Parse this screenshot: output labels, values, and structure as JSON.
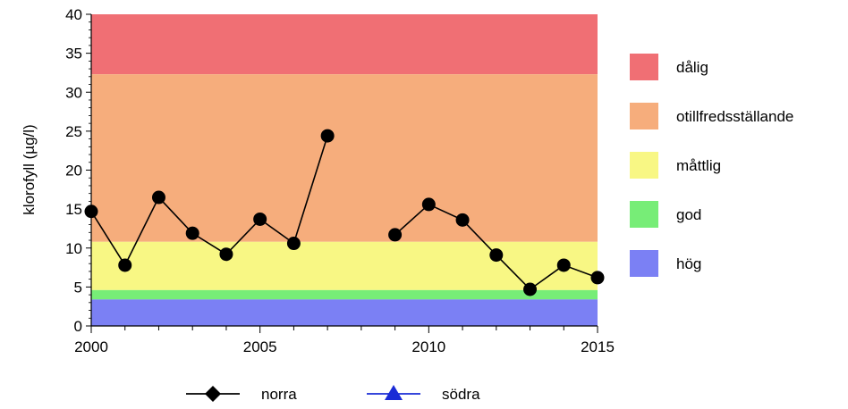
{
  "chart_data": {
    "type": "line",
    "ylabel": "klorofyll (µg/l)",
    "xlabel": "",
    "xlim": [
      2000,
      2015
    ],
    "ylim": [
      0,
      40
    ],
    "xticks": [
      "2000",
      "2005",
      "2010",
      "2015"
    ],
    "yticks": [
      "0",
      "5",
      "10",
      "15",
      "20",
      "25",
      "30",
      "35",
      "40"
    ],
    "grid": false,
    "status_classes": [
      {
        "label": "dålig",
        "from": 32.3,
        "to": 40,
        "color": "#f06f74"
      },
      {
        "label": "otillfredsställande",
        "from": 10.8,
        "to": 32.3,
        "color": "#f6ad7c"
      },
      {
        "label": "måttlig",
        "from": 4.6,
        "to": 10.8,
        "color": "#f8f784"
      },
      {
        "label": "god",
        "from": 3.4,
        "to": 4.6,
        "color": "#77ed77"
      },
      {
        "label": "hög",
        "from": 0,
        "to": 3.4,
        "color": "#7b80f4"
      }
    ],
    "series": [
      {
        "name": "norra",
        "marker": "diamond",
        "color": "#000000",
        "x": [
          2000,
          2001,
          2002,
          2003,
          2004,
          2005,
          2006,
          2007,
          2009,
          2010,
          2011,
          2012,
          2013,
          2014,
          2015
        ],
        "y": [
          14.7,
          7.8,
          16.5,
          11.9,
          9.2,
          13.7,
          10.6,
          24.4,
          11.7,
          15.6,
          13.6,
          9.1,
          4.7,
          7.8,
          6.2
        ],
        "segments": [
          [
            0,
            7
          ],
          [
            8,
            14
          ]
        ]
      },
      {
        "name": "södra",
        "marker": "triangle",
        "color": "#1a2bd6",
        "x": [],
        "y": []
      }
    ]
  }
}
